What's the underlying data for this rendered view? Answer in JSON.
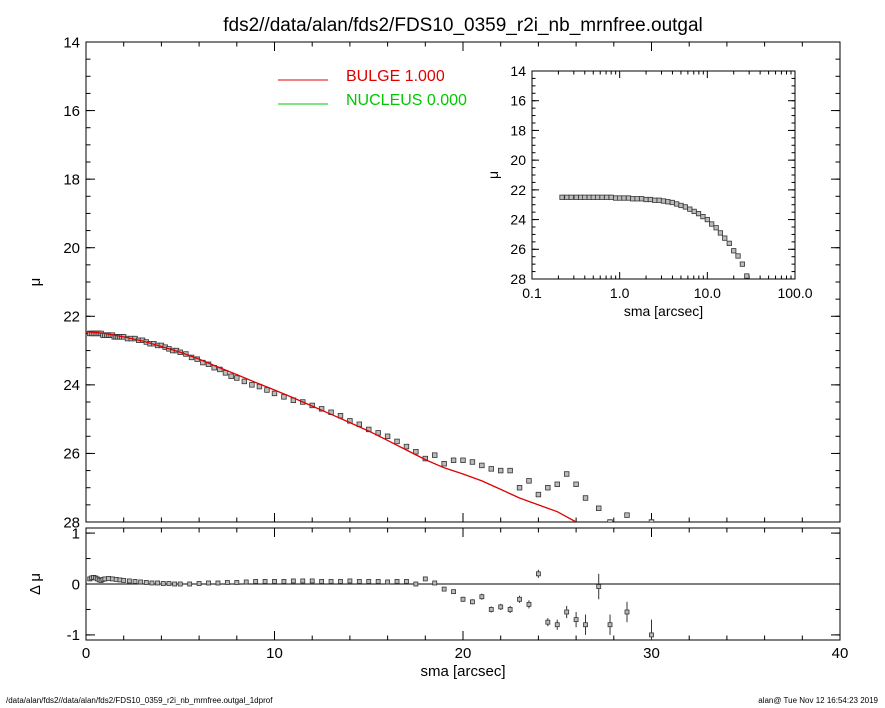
{
  "title": "fds2//data/alan/fds2/FDS10_0359_r2i_nb_mrnfree.outgal",
  "footer": {
    "left": "/data/alan/fds2//data/alan/fds2/FDS10_0359_r2i_nb_mrnfree.outgal_1dprof",
    "right": "alan@  Tue Nov 12 16:54:23 2019"
  },
  "colors": {
    "bulge": "#e00000",
    "nucleus": "#00c800",
    "data": "#555555",
    "axes": "#000000"
  },
  "chart_data": [
    {
      "type": "scatter",
      "panel": "main",
      "xlabel": "",
      "ylabel": "μ",
      "xlim": [
        0,
        40
      ],
      "ylim": [
        28,
        14
      ],
      "xticks": [
        0,
        10,
        20,
        30,
        40
      ],
      "yticks": [
        14,
        16,
        18,
        20,
        22,
        24,
        26,
        28
      ],
      "legend": [
        {
          "label": "BULGE  1.000",
          "color": "#e00000"
        },
        {
          "label": "NUCLEUS  0.000",
          "color": "#00c800"
        }
      ],
      "legend_position": "top-center",
      "series": [
        {
          "kind": "points",
          "x": [
            0.2,
            0.3,
            0.4,
            0.5,
            0.6,
            0.7,
            0.8,
            0.9,
            1.0,
            1.1,
            1.2,
            1.3,
            1.4,
            1.5,
            1.6,
            1.7,
            1.8,
            1.9,
            2.0,
            2.2,
            2.4,
            2.6,
            2.8,
            3.0,
            3.2,
            3.4,
            3.6,
            3.8,
            4.0,
            4.2,
            4.4,
            4.6,
            4.8,
            5.0,
            5.3,
            5.6,
            5.9,
            6.2,
            6.5,
            6.8,
            7.1,
            7.4,
            7.7,
            8.0,
            8.4,
            8.8,
            9.2,
            9.6,
            10.0,
            10.5,
            11.0,
            11.5,
            12.0,
            12.5,
            13.0,
            13.5,
            14.0,
            14.5,
            15.0,
            15.5,
            16.0,
            16.5,
            17.0,
            17.5,
            18.0,
            18.5,
            19.0,
            19.5,
            20.0,
            20.5,
            21.0,
            21.5,
            22.0,
            22.5,
            23.0,
            23.5,
            24.0,
            24.5,
            25.0,
            25.5,
            26.0,
            26.5,
            27.2,
            27.8,
            28.7,
            30.0
          ],
          "y": [
            22.5,
            22.5,
            22.5,
            22.5,
            22.5,
            22.5,
            22.5,
            22.55,
            22.55,
            22.55,
            22.55,
            22.55,
            22.55,
            22.6,
            22.6,
            22.6,
            22.6,
            22.6,
            22.6,
            22.65,
            22.65,
            22.65,
            22.7,
            22.7,
            22.75,
            22.8,
            22.8,
            22.85,
            22.85,
            22.9,
            22.95,
            23.0,
            23.0,
            23.05,
            23.1,
            23.2,
            23.25,
            23.35,
            23.4,
            23.5,
            23.55,
            23.65,
            23.75,
            23.8,
            23.9,
            24.0,
            24.05,
            24.15,
            24.25,
            24.35,
            24.45,
            24.5,
            24.6,
            24.7,
            24.8,
            24.9,
            25.05,
            25.15,
            25.3,
            25.4,
            25.5,
            25.65,
            25.8,
            25.95,
            26.15,
            26.05,
            26.3,
            26.2,
            26.2,
            26.25,
            26.35,
            26.45,
            26.5,
            26.5,
            27.0,
            26.8,
            27.2,
            27.0,
            26.9,
            26.6,
            26.9,
            27.3,
            27.6,
            28.0,
            27.8,
            28.0
          ]
        },
        {
          "kind": "line",
          "name": "BULGE  1.000",
          "x": [
            0,
            1,
            2,
            3,
            4,
            5,
            6,
            7,
            8,
            9,
            10,
            11,
            12,
            13,
            14,
            15,
            16,
            17,
            18,
            19,
            20,
            21,
            22,
            23,
            24,
            25,
            26
          ],
          "y": [
            22.45,
            22.5,
            22.6,
            22.72,
            22.88,
            23.05,
            23.25,
            23.48,
            23.7,
            23.93,
            24.15,
            24.38,
            24.62,
            24.86,
            25.1,
            25.35,
            25.62,
            25.9,
            26.18,
            26.42,
            26.6,
            26.8,
            27.05,
            27.3,
            27.5,
            27.7,
            28.0
          ]
        },
        {
          "kind": "line",
          "name": "NUCLEUS  0.000",
          "x": [],
          "y": []
        }
      ]
    },
    {
      "type": "scatter",
      "panel": "residual",
      "xlabel": "sma [arcsec]",
      "ylabel": "Δ μ",
      "xlim": [
        0,
        40
      ],
      "ylim": [
        -1.1,
        1.1
      ],
      "xticks": [
        0,
        10,
        20,
        30,
        40
      ],
      "yticks": [
        -1,
        0,
        1
      ],
      "reference_line": 0,
      "series": [
        {
          "kind": "points",
          "x": [
            0.2,
            0.3,
            0.4,
            0.5,
            0.6,
            0.7,
            0.8,
            0.9,
            1.0,
            1.2,
            1.4,
            1.6,
            1.8,
            2.0,
            2.3,
            2.6,
            2.9,
            3.2,
            3.5,
            3.8,
            4.1,
            4.4,
            4.7,
            5.0,
            5.5,
            6.0,
            6.5,
            7.0,
            7.5,
            8.0,
            8.5,
            9.0,
            9.5,
            10.0,
            10.5,
            11.0,
            11.5,
            12.0,
            12.5,
            13.0,
            13.5,
            14.0,
            14.5,
            15.0,
            15.5,
            16.0,
            16.5,
            17.0,
            17.5,
            18.0,
            18.5,
            19.0,
            19.5,
            20.0,
            20.5,
            21.0,
            21.5,
            22.0,
            22.5,
            23.0,
            23.5,
            24.0,
            24.5,
            25.0,
            25.5,
            26.0,
            26.5,
            27.2,
            27.8,
            28.7,
            30.0
          ],
          "y": [
            0.1,
            0.12,
            0.13,
            0.12,
            0.1,
            0.08,
            0.07,
            0.09,
            0.1,
            0.11,
            0.1,
            0.09,
            0.08,
            0.07,
            0.06,
            0.05,
            0.04,
            0.03,
            0.02,
            0.02,
            0.01,
            0.01,
            0.0,
            0.0,
            0.0,
            0.01,
            0.02,
            0.02,
            0.03,
            0.03,
            0.04,
            0.05,
            0.05,
            0.05,
            0.05,
            0.06,
            0.06,
            0.06,
            0.05,
            0.05,
            0.05,
            0.06,
            0.05,
            0.05,
            0.05,
            0.04,
            0.05,
            0.05,
            0.0,
            0.1,
            0.02,
            -0.1,
            -0.15,
            -0.3,
            -0.35,
            -0.25,
            -0.5,
            -0.45,
            -0.5,
            -0.3,
            -0.4,
            0.2,
            -0.75,
            -0.8,
            -0.55,
            -0.7,
            -0.8,
            -0.05,
            -0.8,
            -0.55,
            -1.0
          ],
          "errors": [
            0.02,
            0.02,
            0.02,
            0.02,
            0.02,
            0.02,
            0.02,
            0.02,
            0.02,
            0.02,
            0.02,
            0.02,
            0.02,
            0.02,
            0.02,
            0.02,
            0.02,
            0.02,
            0.02,
            0.02,
            0.02,
            0.02,
            0.02,
            0.02,
            0.02,
            0.02,
            0.02,
            0.02,
            0.02,
            0.02,
            0.02,
            0.02,
            0.02,
            0.02,
            0.02,
            0.02,
            0.02,
            0.02,
            0.02,
            0.02,
            0.02,
            0.02,
            0.02,
            0.02,
            0.02,
            0.02,
            0.02,
            0.03,
            0.03,
            0.03,
            0.04,
            0.04,
            0.04,
            0.05,
            0.05,
            0.06,
            0.06,
            0.06,
            0.07,
            0.07,
            0.08,
            0.08,
            0.08,
            0.1,
            0.12,
            0.15,
            0.2,
            0.25,
            0.2,
            0.2,
            0.3
          ]
        }
      ]
    },
    {
      "type": "scatter",
      "panel": "inset",
      "xscale": "log",
      "xlabel": "sma [arcsec]",
      "ylabel": "μ",
      "xlim": [
        0.1,
        100
      ],
      "ylim": [
        28,
        14
      ],
      "xticks": [
        0.1,
        1,
        10,
        100
      ],
      "xtick_labels": [
        "0.1",
        "1.0",
        "10.0",
        "100.0"
      ],
      "yticks": [
        14,
        16,
        18,
        20,
        22,
        24,
        26,
        28
      ],
      "series": [
        {
          "kind": "points",
          "x": [
            0.22,
            0.25,
            0.28,
            0.32,
            0.36,
            0.4,
            0.45,
            0.5,
            0.56,
            0.63,
            0.71,
            0.8,
            0.9,
            1.0,
            1.12,
            1.26,
            1.41,
            1.58,
            1.78,
            2.0,
            2.24,
            2.51,
            2.82,
            3.16,
            3.55,
            3.98,
            4.47,
            5.01,
            5.62,
            6.31,
            7.08,
            7.94,
            8.91,
            10.0,
            11.2,
            12.6,
            14.1,
            15.8,
            17.8,
            20.0,
            22.4,
            25.1,
            28.2
          ],
          "y": [
            22.5,
            22.5,
            22.5,
            22.5,
            22.5,
            22.5,
            22.5,
            22.5,
            22.5,
            22.5,
            22.5,
            22.5,
            22.55,
            22.55,
            22.55,
            22.55,
            22.6,
            22.6,
            22.6,
            22.65,
            22.65,
            22.7,
            22.7,
            22.75,
            22.8,
            22.85,
            22.95,
            23.05,
            23.15,
            23.3,
            23.45,
            23.6,
            23.8,
            24.0,
            24.3,
            24.55,
            24.9,
            25.25,
            25.6,
            26.1,
            26.45,
            27.0,
            27.8
          ]
        }
      ]
    }
  ]
}
